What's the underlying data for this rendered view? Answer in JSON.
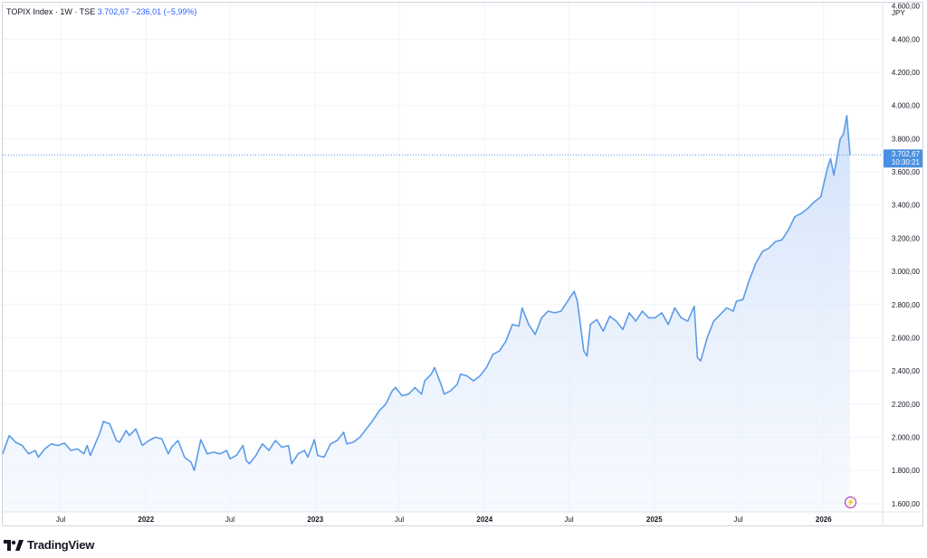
{
  "header": {
    "symbol": "TOPIX Index",
    "interval": "1W",
    "exchange": "TSE",
    "last": "3.702,67",
    "change": "−236,01",
    "change_pct": "(−5,99%)"
  },
  "currency": "JPY",
  "price_label": {
    "value": "3.702,67",
    "time": "10:30:21"
  },
  "brand": "TradingView",
  "colors": {
    "line": "#5b9be8",
    "fill_top": "#dbe8fb",
    "label_bg": "#4a90e2",
    "grid": "#f0f3fa",
    "text": "#131722"
  },
  "chart_data": {
    "type": "area",
    "xlabel": "",
    "ylabel": "",
    "ylim": [
      1550,
      4620
    ],
    "y_ticks": [
      "1.600,00",
      "1.800,00",
      "2.000,00",
      "2.200,00",
      "2.400,00",
      "2.600,00",
      "2.800,00",
      "3.000,00",
      "3.200,00",
      "3.400,00",
      "3.600,00",
      "3.800,00",
      "4.000,00",
      "4.200,00",
      "4.400,00",
      "4.600,00"
    ],
    "y_tick_values": [
      1600,
      1800,
      2000,
      2200,
      2400,
      2600,
      2800,
      3000,
      3200,
      3400,
      3600,
      3800,
      4000,
      4200,
      4400,
      4600
    ],
    "x_ticks": [
      {
        "label": "Jul",
        "date": "2021-07-01"
      },
      {
        "label": "2022",
        "date": "2022-01-01"
      },
      {
        "label": "Jul",
        "date": "2022-07-01"
      },
      {
        "label": "2023",
        "date": "2023-01-01"
      },
      {
        "label": "Jul",
        "date": "2023-07-01"
      },
      {
        "label": "2024",
        "date": "2024-01-01"
      },
      {
        "label": "Jul",
        "date": "2024-07-01"
      },
      {
        "label": "2025",
        "date": "2025-01-01"
      },
      {
        "label": "Jul",
        "date": "2025-07-01"
      },
      {
        "label": "2026",
        "date": "2026-01-01"
      }
    ],
    "last_value": 3702.67,
    "grid": true,
    "series": [
      {
        "points": [
          [
            "2021-02-26",
            1900
          ],
          [
            "2021-03-12",
            2010
          ],
          [
            "2021-03-26",
            1970
          ],
          [
            "2021-04-09",
            1950
          ],
          [
            "2021-04-23",
            1900
          ],
          [
            "2021-05-07",
            1920
          ],
          [
            "2021-05-14",
            1880
          ],
          [
            "2021-05-28",
            1930
          ],
          [
            "2021-06-11",
            1960
          ],
          [
            "2021-06-25",
            1950
          ],
          [
            "2021-07-09",
            1965
          ],
          [
            "2021-07-23",
            1920
          ],
          [
            "2021-08-06",
            1930
          ],
          [
            "2021-08-20",
            1900
          ],
          [
            "2021-08-27",
            1950
          ],
          [
            "2021-09-03",
            1890
          ],
          [
            "2021-09-24",
            2030
          ],
          [
            "2021-10-01",
            2095
          ],
          [
            "2021-10-15",
            2080
          ],
          [
            "2021-10-29",
            1980
          ],
          [
            "2021-11-05",
            1970
          ],
          [
            "2021-11-19",
            2040
          ],
          [
            "2021-11-26",
            2010
          ],
          [
            "2021-12-10",
            2050
          ],
          [
            "2021-12-24",
            1950
          ],
          [
            "2022-01-07",
            1980
          ],
          [
            "2022-01-21",
            2000
          ],
          [
            "2022-02-04",
            1990
          ],
          [
            "2022-02-18",
            1900
          ],
          [
            "2022-02-25",
            1940
          ],
          [
            "2022-03-11",
            1980
          ],
          [
            "2022-03-25",
            1880
          ],
          [
            "2022-04-08",
            1850
          ],
          [
            "2022-04-15",
            1800
          ],
          [
            "2022-04-29",
            1985
          ],
          [
            "2022-05-13",
            1900
          ],
          [
            "2022-05-27",
            1910
          ],
          [
            "2022-06-10",
            1900
          ],
          [
            "2022-06-24",
            1920
          ],
          [
            "2022-07-01",
            1870
          ],
          [
            "2022-07-15",
            1890
          ],
          [
            "2022-07-29",
            1950
          ],
          [
            "2022-08-05",
            1860
          ],
          [
            "2022-08-12",
            1840
          ],
          [
            "2022-08-26",
            1890
          ],
          [
            "2022-09-09",
            1960
          ],
          [
            "2022-09-23",
            1920
          ],
          [
            "2022-10-07",
            1980
          ],
          [
            "2022-10-21",
            1940
          ],
          [
            "2022-11-04",
            1950
          ],
          [
            "2022-11-11",
            1840
          ],
          [
            "2022-11-25",
            1900
          ],
          [
            "2022-12-09",
            1920
          ],
          [
            "2022-12-16",
            1880
          ],
          [
            "2022-12-30",
            1985
          ],
          [
            "2023-01-06",
            1890
          ],
          [
            "2023-01-20",
            1880
          ],
          [
            "2023-02-03",
            1960
          ],
          [
            "2023-02-17",
            1980
          ],
          [
            "2023-03-03",
            2030
          ],
          [
            "2023-03-10",
            1960
          ],
          [
            "2023-03-24",
            1970
          ],
          [
            "2023-04-07",
            2000
          ],
          [
            "2023-04-21",
            2050
          ],
          [
            "2023-05-05",
            2100
          ],
          [
            "2023-05-19",
            2160
          ],
          [
            "2023-06-02",
            2200
          ],
          [
            "2023-06-16",
            2280
          ],
          [
            "2023-06-23",
            2300
          ],
          [
            "2023-07-07",
            2250
          ],
          [
            "2023-07-21",
            2260
          ],
          [
            "2023-08-04",
            2300
          ],
          [
            "2023-08-18",
            2260
          ],
          [
            "2023-08-25",
            2340
          ],
          [
            "2023-09-08",
            2380
          ],
          [
            "2023-09-15",
            2420
          ],
          [
            "2023-09-29",
            2320
          ],
          [
            "2023-10-06",
            2260
          ],
          [
            "2023-10-20",
            2280
          ],
          [
            "2023-11-03",
            2320
          ],
          [
            "2023-11-10",
            2380
          ],
          [
            "2023-11-24",
            2370
          ],
          [
            "2023-12-08",
            2340
          ],
          [
            "2023-12-22",
            2370
          ],
          [
            "2024-01-05",
            2420
          ],
          [
            "2024-01-19",
            2500
          ],
          [
            "2024-02-02",
            2520
          ],
          [
            "2024-02-16",
            2580
          ],
          [
            "2024-03-01",
            2680
          ],
          [
            "2024-03-15",
            2670
          ],
          [
            "2024-03-22",
            2780
          ],
          [
            "2024-04-05",
            2680
          ],
          [
            "2024-04-19",
            2620
          ],
          [
            "2024-05-03",
            2720
          ],
          [
            "2024-05-17",
            2760
          ],
          [
            "2024-05-31",
            2750
          ],
          [
            "2024-06-14",
            2760
          ],
          [
            "2024-06-28",
            2820
          ],
          [
            "2024-07-12",
            2880
          ],
          [
            "2024-07-19",
            2820
          ],
          [
            "2024-08-02",
            2520
          ],
          [
            "2024-08-09",
            2490
          ],
          [
            "2024-08-16",
            2680
          ],
          [
            "2024-08-30",
            2710
          ],
          [
            "2024-09-13",
            2640
          ],
          [
            "2024-09-27",
            2730
          ],
          [
            "2024-10-11",
            2700
          ],
          [
            "2024-10-25",
            2650
          ],
          [
            "2024-11-08",
            2750
          ],
          [
            "2024-11-22",
            2700
          ],
          [
            "2024-12-06",
            2760
          ],
          [
            "2024-12-20",
            2720
          ],
          [
            "2025-01-03",
            2720
          ],
          [
            "2025-01-17",
            2750
          ],
          [
            "2025-01-31",
            2680
          ],
          [
            "2025-02-14",
            2780
          ],
          [
            "2025-02-28",
            2720
          ],
          [
            "2025-03-14",
            2700
          ],
          [
            "2025-03-28",
            2790
          ],
          [
            "2025-04-04",
            2480
          ],
          [
            "2025-04-11",
            2460
          ],
          [
            "2025-04-25",
            2600
          ],
          [
            "2025-05-09",
            2700
          ],
          [
            "2025-05-23",
            2740
          ],
          [
            "2025-06-06",
            2780
          ],
          [
            "2025-06-20",
            2760
          ],
          [
            "2025-06-27",
            2820
          ],
          [
            "2025-07-11",
            2830
          ],
          [
            "2025-07-25",
            2950
          ],
          [
            "2025-08-08",
            3050
          ],
          [
            "2025-08-22",
            3120
          ],
          [
            "2025-09-05",
            3140
          ],
          [
            "2025-09-19",
            3180
          ],
          [
            "2025-10-03",
            3190
          ],
          [
            "2025-10-17",
            3250
          ],
          [
            "2025-10-31",
            3330
          ],
          [
            "2025-11-14",
            3350
          ],
          [
            "2025-11-28",
            3380
          ],
          [
            "2025-12-12",
            3420
          ],
          [
            "2025-12-26",
            3450
          ],
          [
            "2026-01-09",
            3620
          ],
          [
            "2026-01-16",
            3680
          ],
          [
            "2026-01-23",
            3580
          ],
          [
            "2026-02-06",
            3800
          ],
          [
            "2026-02-13",
            3830
          ],
          [
            "2026-02-20",
            3938.68
          ],
          [
            "2026-02-27",
            3702.67
          ]
        ]
      }
    ]
  }
}
